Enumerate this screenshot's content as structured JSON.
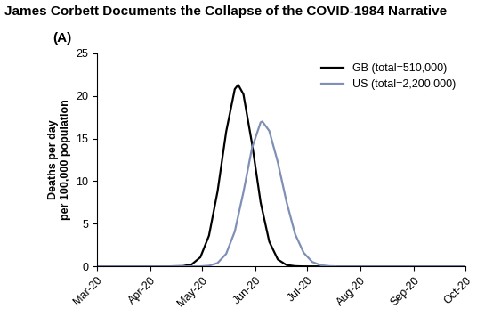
{
  "chart_data": {
    "type": "line",
    "title": "James Corbett Documents the Collapse of the COVID-1984 Narrative",
    "annotation": "(A)",
    "y_label": "Deaths per day\nper 100,000 population",
    "series": [
      {
        "name": "GB (total=510,000)",
        "color": "#000000",
        "x": [
          0,
          20,
          40,
          50,
          55,
          60,
          65,
          70,
          75,
          80,
          82,
          85,
          90,
          95,
          100,
          105,
          110,
          115,
          120,
          140,
          160,
          180,
          200,
          214
        ],
        "values": [
          0,
          0,
          0,
          0.04,
          0.24,
          1.07,
          3.6,
          8.8,
          15.8,
          20.8,
          21.3,
          20.2,
          14.4,
          7.5,
          2.9,
          0.81,
          0.17,
          0.03,
          0,
          0,
          0,
          0,
          0,
          0
        ]
      },
      {
        "name": "US (total=2,200,000)",
        "color": "#7f8fb5",
        "x": [
          0,
          20,
          40,
          60,
          65,
          70,
          75,
          80,
          85,
          90,
          95,
          96,
          100,
          105,
          110,
          115,
          120,
          125,
          130,
          135,
          140,
          160,
          180,
          200,
          214
        ],
        "values": [
          0,
          0,
          0,
          0.01,
          0.08,
          0.4,
          1.48,
          4.1,
          8.7,
          13.9,
          16.9,
          17,
          15.9,
          12.2,
          7.6,
          3.8,
          1.6,
          0.52,
          0.14,
          0.03,
          0,
          0,
          0,
          0,
          0
        ]
      }
    ],
    "xlim": [
      0,
      214
    ],
    "xticks": [
      {
        "value": 0,
        "label": "Mar-20"
      },
      {
        "value": 31,
        "label": "Apr-20"
      },
      {
        "value": 61,
        "label": "May-20"
      },
      {
        "value": 92,
        "label": "Jun-20"
      },
      {
        "value": 122,
        "label": "Jul-20"
      },
      {
        "value": 153,
        "label": "Aug-20"
      },
      {
        "value": 184,
        "label": "Sep-20"
      },
      {
        "value": 214,
        "label": "Oct-20"
      }
    ],
    "ylim": [
      0,
      25
    ],
    "yticks": [
      0,
      5,
      10,
      15,
      20,
      25
    ],
    "legend": "upper right",
    "grid": false
  }
}
